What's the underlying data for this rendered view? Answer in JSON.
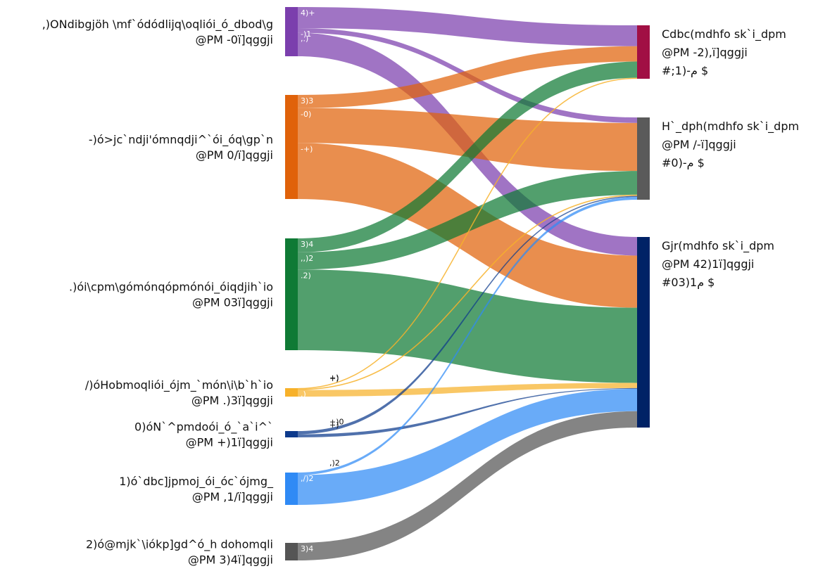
{
  "chart_data": {
    "type": "sankey",
    "value_unit": "",
    "sources": [
      {
        "id": "s1",
        "label_lines": [
          ",)ONdibgjöh \\mf`ódódlijq\\oqliói_ó_dbod\\g",
          "@PM -0ï]qggji"
        ],
        "color": "#7b3fad",
        "value": 15.9,
        "segment_labels": [
          "4)+",
          "-)1",
          ",.)"
        ]
      },
      {
        "id": "s2",
        "label_lines": [
          "-)ó>jc`ndji'ómnqdji^`ói_óq\\gp`n",
          "@PM 0/ï]qggji"
        ],
        "color": "#e0620a",
        "value": 26.0,
        "segment_labels": [
          "3)3",
          "-0)",
          "-+)"
        ]
      },
      {
        "id": "s3",
        "label_lines": [
          ".)ói\\cpm\\gómónqópmónói_óiqdjih`io",
          "@PM 03ï]qggji"
        ],
        "color": "#0f7a35",
        "value": 28.0,
        "segment_labels": [
          "3)4",
          ",,)2",
          ".2)"
        ]
      },
      {
        "id": "s4",
        "label_lines": [
          "/)óHobmoqliói_ójm_`món\\i\\b`h`io",
          "@PM .)3ï]qggji"
        ],
        "color": "#f7b12a",
        "value": 1.8,
        "segment_labels": [
          ".)"
        ]
      },
      {
        "id": "s5",
        "label_lines": [
          "0)óN`^pmdoói_ó_`a`i^`",
          "@PM +)1ï]qggji"
        ],
        "color": "#0d3a8c",
        "value": 1.0,
        "segment_labels": []
      },
      {
        "id": "s6",
        "label_lines": [
          "1)ó`dbc]jpmoj_ói_óc`ójmg_",
          "@PM ,1/ï]qggji"
        ],
        "color": "#2f8af5",
        "value": 9.0,
        "segment_labels": [
          ",/)2"
        ]
      },
      {
        "id": "s7",
        "label_lines": [
          "2)ó@mjk`\\iókp]gd^ó_h dohomqli",
          "@PM 3)4ï]qggji"
        ],
        "color": "#555555",
        "value": 5.3,
        "segment_labels": [
          "3)4"
        ]
      }
    ],
    "targets": [
      {
        "id": "t1",
        "label_lines": [
          "Cdbc(mdhfo sk`i_dpm",
          "@PM -2),ï]qggji",
          "#;1)-م $"
        ],
        "color": "#a10f44",
        "value": 13.5
      },
      {
        "id": "t2",
        "label_lines": [
          "H`_dph(mdhfo sk`i_dpm",
          "@PM /-ï]qggji",
          "#0)-م $"
        ],
        "color": "#5a5a5a",
        "value": 20.0
      },
      {
        "id": "t3",
        "label_lines": [
          "Gjr(mdhfo sk`i_dpm",
          "@PM 42)1ï]qggji",
          "#03)1م $"
        ],
        "color": "#002266",
        "value": 48.0
      }
    ],
    "links": [
      {
        "source": "s1",
        "target": "t1",
        "value": 4.5
      },
      {
        "source": "s1",
        "target": "t2",
        "value": 1.0
      },
      {
        "source": "s1",
        "target": "t3",
        "value": 5.0
      },
      {
        "source": "s2",
        "target": "t1",
        "value": 3.3
      },
      {
        "source": "s2",
        "target": "t2",
        "value": 8.7
      },
      {
        "source": "s2",
        "target": "t3",
        "value": 14.0
      },
      {
        "source": "s3",
        "target": "t1",
        "value": 3.5
      },
      {
        "source": "s3",
        "target": "t2",
        "value": 4.3
      },
      {
        "source": "s3",
        "target": "t3",
        "value": 20.2
      },
      {
        "source": "s4",
        "target": "t1",
        "value": 0.2,
        "label": "+)"
      },
      {
        "source": "s4",
        "target": "t2",
        "value": 0.2,
        "label": "+)"
      },
      {
        "source": "s4",
        "target": "t3",
        "value": 1.4
      },
      {
        "source": "s5",
        "target": "t2",
        "value": 0.2,
        "label": "+)0"
      },
      {
        "source": "s5",
        "target": "t3",
        "value": 0.2,
        "label": "+)"
      },
      {
        "source": "s6",
        "target": "t2",
        "value": 0.5,
        "label": ",)2"
      },
      {
        "source": "s6",
        "target": "t3",
        "value": 6.0
      },
      {
        "source": "s7",
        "target": "t3",
        "value": 4.4
      }
    ],
    "source_order_for_target_stack": [
      "s1",
      "s2",
      "s3",
      "s4",
      "s5",
      "s6",
      "s7"
    ]
  }
}
